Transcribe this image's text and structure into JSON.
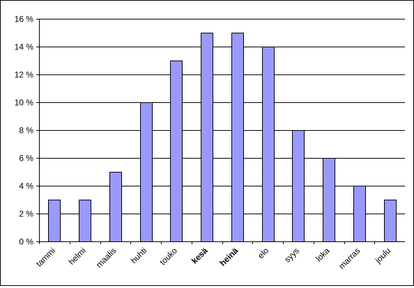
{
  "chart_data": {
    "type": "bar",
    "title": "",
    "xlabel": "",
    "ylabel": "",
    "categories": [
      "tammi",
      "helmi",
      "maalis",
      "huhti",
      "touko",
      "kesä",
      "heinä",
      "elo",
      "syys",
      "loka",
      "marras",
      "joulu"
    ],
    "bold_categories": [
      "kesä",
      "heinä"
    ],
    "values": [
      3,
      3,
      5,
      10,
      13,
      15,
      15,
      14,
      8,
      6,
      4,
      3
    ],
    "unit": "%",
    "y_ticks": [
      "0 %",
      "2 %",
      "4 %",
      "6 %",
      "8 %",
      "10 %",
      "12 %",
      "14 %",
      "16 %"
    ],
    "ylim": [
      0,
      16
    ],
    "grid": true,
    "legend": "none",
    "colors": {
      "bar_fill": "#9999ff",
      "bar_stroke": "#000000",
      "grid": "#000000",
      "background": "#ffffff"
    }
  }
}
